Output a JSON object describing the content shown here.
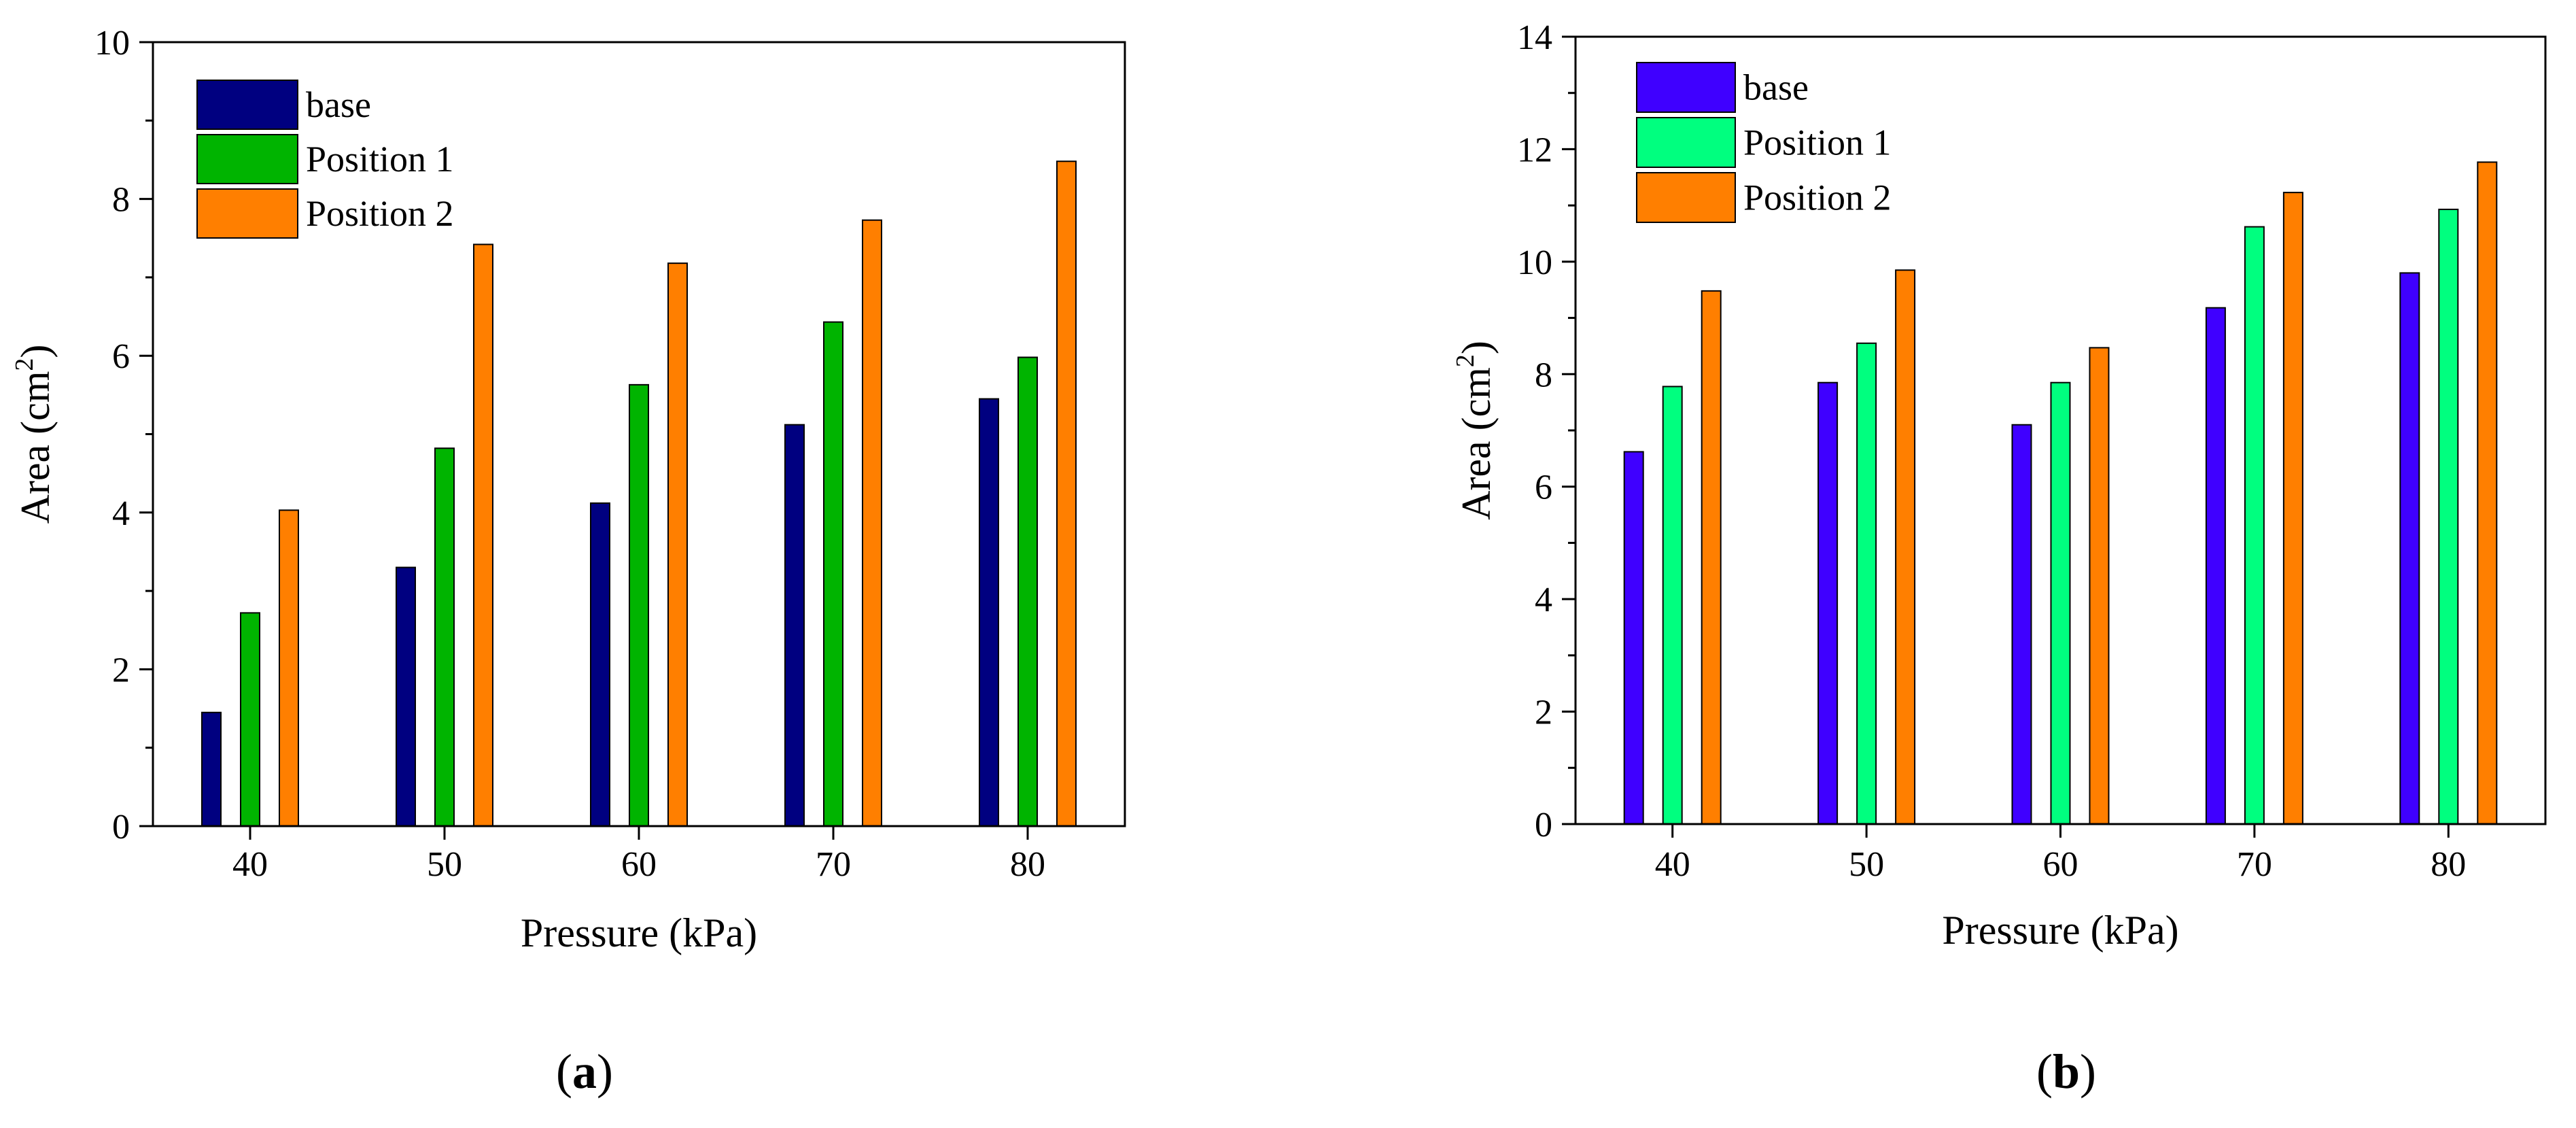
{
  "chart_data": [
    {
      "type": "bar",
      "panel_label": "a",
      "xlabel": "Pressure (kPa)",
      "ylabel_main": "Area (cm",
      "ylabel_sup": "2",
      "ylabel_end": ")",
      "categories": [
        "40",
        "50",
        "60",
        "70",
        "80"
      ],
      "ylim": [
        0,
        10
      ],
      "yticks": [
        "0",
        "2",
        "4",
        "6",
        "8",
        "10"
      ],
      "ytick_values": [
        0,
        2,
        4,
        6,
        8,
        10
      ],
      "legend_position": "top-left",
      "grid": false,
      "series": [
        {
          "name": "base",
          "color": "#000080",
          "values": [
            1.45,
            3.3,
            4.12,
            5.12,
            5.45
          ]
        },
        {
          "name": "Position 1",
          "color": "#00B400",
          "values": [
            2.72,
            4.82,
            5.63,
            6.43,
            5.98
          ]
        },
        {
          "name": "Position 2",
          "color": "#FF7F00",
          "values": [
            4.03,
            7.42,
            7.18,
            7.73,
            8.48
          ]
        }
      ]
    },
    {
      "type": "bar",
      "panel_label": "b",
      "xlabel": "Pressure (kPa)",
      "ylabel_main": "Area (cm",
      "ylabel_sup": "2",
      "ylabel_end": ")",
      "categories": [
        "40",
        "50",
        "60",
        "70",
        "80"
      ],
      "ylim": [
        0,
        14
      ],
      "yticks": [
        "0",
        "2",
        "4",
        "6",
        "8",
        "10",
        "12",
        "14"
      ],
      "ytick_values": [
        0,
        2,
        4,
        6,
        8,
        10,
        12,
        14
      ],
      "legend_position": "top-left",
      "grid": false,
      "series": [
        {
          "name": "base",
          "color": "#3F00FF",
          "values": [
            6.62,
            7.85,
            7.1,
            9.18,
            9.8
          ]
        },
        {
          "name": "Position 1",
          "color": "#00FF7F",
          "values": [
            7.78,
            8.55,
            7.85,
            10.62,
            10.93
          ]
        },
        {
          "name": "Position 2",
          "color": "#FF7F00",
          "values": [
            9.48,
            9.85,
            8.47,
            11.23,
            11.77
          ]
        }
      ]
    }
  ]
}
